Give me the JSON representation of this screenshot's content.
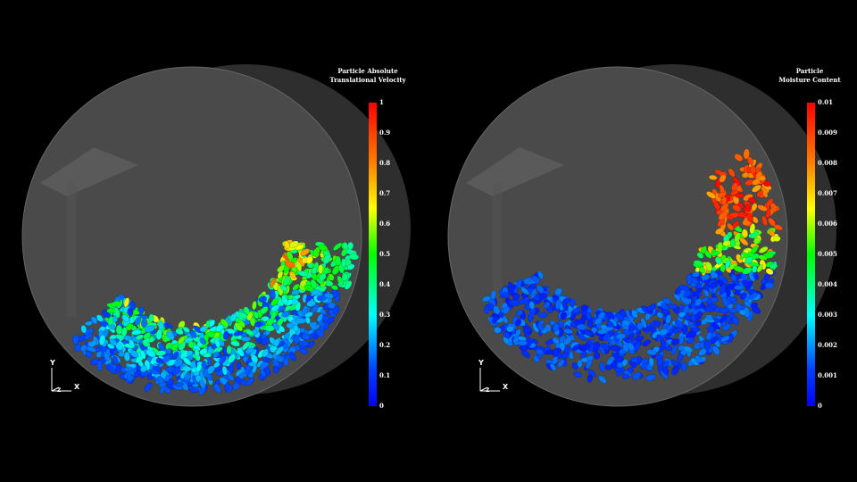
{
  "panels": [
    {
      "legend_title_1": "Particle Absolute",
      "legend_title_2": "Translational Velocity",
      "ticks": [
        "1",
        "0.9",
        "0.8",
        "0.7",
        "0.6",
        "0.5",
        "0.4",
        "0.3",
        "0.2",
        "0.1",
        "0"
      ]
    },
    {
      "legend_title_1": "Particle",
      "legend_title_2": "Moisture Content",
      "ticks": [
        "0.01",
        "0.009",
        "0.008",
        "0.007",
        "0.006",
        "0.005",
        "0.004",
        "0.003",
        "0.002",
        "0.001",
        "0"
      ]
    }
  ],
  "axes": {
    "y": "Y",
    "x": "X",
    "z": "Z"
  },
  "colors": {
    "background": "#000000",
    "drum": "#4a4a4a",
    "colormap": [
      "#0000ff",
      "#00ffff",
      "#00ff00",
      "#ffff00",
      "#ff0000"
    ]
  }
}
